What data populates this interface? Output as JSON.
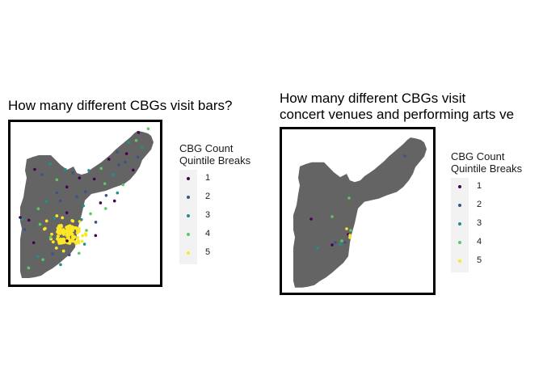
{
  "colors": {
    "city_fill": "#646464",
    "frame": "#000000",
    "legend_key_bg": "#f2f2f2",
    "quintiles": [
      "#440154",
      "#3b528b",
      "#21908c",
      "#5dc863",
      "#fde725"
    ]
  },
  "maps": [
    {
      "title": "How many different CBGs visit bars?",
      "legend": {
        "title": "CBG Count\nQuintile Breaks",
        "items": [
          {
            "label": "1",
            "color": "#440154"
          },
          {
            "label": "2",
            "color": "#3b528b"
          },
          {
            "label": "3",
            "color": "#21908c"
          },
          {
            "label": "4",
            "color": "#5dc863"
          },
          {
            "label": "5",
            "color": "#fde725"
          }
        ]
      }
    },
    {
      "title": "How many different CBGs visit\nconcert venues and performing arts ve",
      "legend": {
        "title": "CBG Count\nQuintile Breaks",
        "items": [
          {
            "label": "1",
            "color": "#440154"
          },
          {
            "label": "2",
            "color": "#3b528b"
          },
          {
            "label": "3",
            "color": "#21908c"
          },
          {
            "label": "4",
            "color": "#5dc863"
          },
          {
            "label": "5",
            "color": "#fde725"
          }
        ]
      }
    }
  ]
}
